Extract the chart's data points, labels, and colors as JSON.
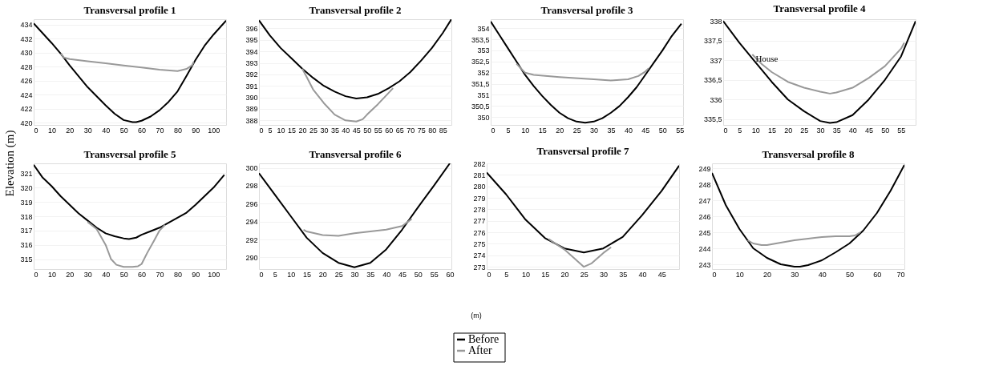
{
  "chart_data": [
    {
      "type": "line",
      "title": "Transversal profile 1",
      "ylabel": "Elevation (m)",
      "legend": "bottom",
      "grid": "y",
      "xlim": [
        0,
        107
      ],
      "ylim": [
        419.7,
        434.8
      ],
      "xticks": [
        0,
        10,
        20,
        30,
        40,
        50,
        60,
        70,
        80,
        90,
        100
      ],
      "yticks": [
        420,
        422,
        424,
        426,
        428,
        430,
        432,
        434
      ],
      "series": [
        {
          "name": "Before",
          "color": "#000000",
          "x": [
            0,
            10,
            15,
            20,
            30,
            40,
            45,
            50,
            55,
            57,
            60,
            65,
            70,
            75,
            80,
            85,
            90,
            95,
            100,
            107
          ],
          "values": [
            434.2,
            431.4,
            429.9,
            428.2,
            425.1,
            422.5,
            421.3,
            420.4,
            420.1,
            420.1,
            420.3,
            420.9,
            421.8,
            423.0,
            424.5,
            426.7,
            429.0,
            431.0,
            432.6,
            434.6
          ]
        },
        {
          "name": "After",
          "color": "#999999",
          "x": [
            15,
            17,
            20,
            30,
            40,
            50,
            60,
            70,
            80,
            85,
            88,
            89
          ],
          "values": [
            429.9,
            429.3,
            429.1,
            428.8,
            428.5,
            428.2,
            427.9,
            427.6,
            427.4,
            427.7,
            428.2,
            428.7
          ]
        }
      ]
    },
    {
      "type": "line",
      "title": "Transversal profile 2",
      "grid": "y",
      "xlim": [
        0,
        89
      ],
      "ylim": [
        387.6,
        396.8
      ],
      "xticks": [
        0,
        5,
        10,
        15,
        20,
        25,
        30,
        35,
        40,
        45,
        50,
        55,
        60,
        65,
        70,
        75,
        80,
        85
      ],
      "yticks": [
        388,
        389,
        390,
        391,
        392,
        393,
        394,
        395,
        396
      ],
      "series": [
        {
          "color": "#000000",
          "x": [
            0,
            5,
            10,
            15,
            20,
            25,
            30,
            35,
            40,
            45,
            50,
            55,
            60,
            65,
            70,
            75,
            80,
            85,
            89
          ],
          "values": [
            396.7,
            395.4,
            394.3,
            393.4,
            392.5,
            391.7,
            391.0,
            390.5,
            390.1,
            389.9,
            390.0,
            390.3,
            390.8,
            391.4,
            392.2,
            393.2,
            394.3,
            395.6,
            396.8
          ]
        },
        {
          "color": "#999999",
          "x": [
            20,
            22,
            25,
            30,
            35,
            40,
            45,
            48,
            50,
            55,
            60,
            62
          ],
          "values": [
            392.5,
            391.8,
            390.7,
            389.5,
            388.5,
            388.0,
            387.9,
            388.1,
            388.5,
            389.4,
            390.4,
            390.8
          ]
        }
      ]
    },
    {
      "type": "line",
      "title": "Transversal profile 3",
      "grid": "y",
      "xlim": [
        0,
        56
      ],
      "ylim": [
        349.65,
        354.4
      ],
      "xticks": [
        0,
        5,
        10,
        15,
        20,
        25,
        30,
        35,
        40,
        45,
        50,
        55
      ],
      "yticks": [
        350,
        {
          "value": 350.5,
          "label": "350,5"
        },
        351,
        {
          "value": 351.5,
          "label": "351,5"
        },
        352,
        {
          "value": 352.5,
          "label": "352,5"
        },
        353,
        {
          "value": 353.5,
          "label": "353,5"
        },
        354
      ],
      "series": [
        {
          "color": "#000000",
          "x": [
            0,
            2.5,
            5,
            7.5,
            10,
            12.5,
            15,
            17.5,
            20,
            22.5,
            25,
            27.5,
            30,
            32.5,
            35,
            37.5,
            40,
            42.5,
            45,
            47.5,
            50,
            52.5,
            55.5
          ],
          "values": [
            354.3,
            353.7,
            353.1,
            352.5,
            351.9,
            351.4,
            350.95,
            350.55,
            350.2,
            349.95,
            349.8,
            349.75,
            349.8,
            349.95,
            350.2,
            350.5,
            350.9,
            351.35,
            351.9,
            352.45,
            353.0,
            353.6,
            354.2
          ]
        },
        {
          "color": "#999999",
          "x": [
            7.5,
            10,
            12.5,
            20,
            30,
            35,
            40,
            43,
            45,
            46
          ],
          "values": [
            352.4,
            352.0,
            351.9,
            351.8,
            351.7,
            351.65,
            351.7,
            351.85,
            352.05,
            352.2
          ]
        }
      ]
    },
    {
      "type": "line",
      "title": "Transversal profile 4",
      "grid": "y",
      "xlim": [
        0,
        59.5
      ],
      "ylim": [
        335.35,
        338.05
      ],
      "xticks": [
        0,
        5,
        10,
        15,
        20,
        25,
        30,
        35,
        40,
        45,
        50,
        55
      ],
      "yticks": [
        {
          "value": 335.5,
          "label": "335,5"
        },
        336,
        {
          "value": 336.5,
          "label": "336,5"
        },
        337,
        {
          "value": 337.5,
          "label": "337,5"
        },
        338
      ],
      "annotations": [
        {
          "text": "House",
          "x": 13,
          "y": 336.75
        }
      ],
      "series": [
        {
          "color": "#000000",
          "x": [
            0,
            5,
            10,
            15,
            20,
            25,
            30,
            33,
            35,
            40,
            45,
            50,
            55,
            59.5
          ],
          "values": [
            338.0,
            337.45,
            336.95,
            336.45,
            336.0,
            335.7,
            335.45,
            335.4,
            335.42,
            335.6,
            336.0,
            336.5,
            337.1,
            338.0
          ]
        },
        {
          "color": "#999999",
          "x": [
            9,
            12,
            15,
            20,
            25,
            30,
            33,
            35,
            40,
            45,
            50,
            55,
            56
          ],
          "values": [
            337.15,
            336.9,
            336.7,
            336.45,
            336.3,
            336.2,
            336.15,
            336.18,
            336.3,
            336.55,
            336.85,
            337.3,
            337.45
          ]
        }
      ]
    },
    {
      "type": "line",
      "title": "Transversal profile 5",
      "grid": "y",
      "xlim": [
        0,
        107
      ],
      "ylim": [
        314.3,
        321.7
      ],
      "xticks": [
        0,
        10,
        20,
        30,
        40,
        50,
        60,
        70,
        80,
        90,
        100
      ],
      "yticks": [
        315,
        316,
        317,
        318,
        319,
        320,
        321
      ],
      "series": [
        {
          "color": "#000000",
          "x": [
            0,
            5,
            10,
            15,
            20,
            25,
            30,
            35,
            40,
            45,
            50,
            53,
            57,
            60,
            65,
            70,
            75,
            80,
            85,
            90,
            95,
            100,
            106
          ],
          "values": [
            321.6,
            320.7,
            320.1,
            319.4,
            318.8,
            318.2,
            317.7,
            317.2,
            316.8,
            316.6,
            316.45,
            316.4,
            316.5,
            316.7,
            316.95,
            317.2,
            317.55,
            317.9,
            318.25,
            318.8,
            319.4,
            320.0,
            320.9
          ]
        },
        {
          "color": "#999999",
          "x": [
            30,
            35,
            40,
            43,
            46,
            50,
            55,
            58,
            60,
            63,
            67,
            70,
            73
          ],
          "values": [
            317.6,
            317.1,
            316.0,
            315.0,
            314.6,
            314.45,
            314.45,
            314.5,
            314.65,
            315.4,
            316.3,
            317.0,
            317.4
          ]
        }
      ]
    },
    {
      "type": "line",
      "title": "Transversal profile 6",
      "grid": "y",
      "xlim": [
        0,
        60.5
      ],
      "ylim": [
        288.7,
        300.5
      ],
      "xticks": [
        0,
        5,
        10,
        15,
        20,
        25,
        30,
        35,
        40,
        45,
        50,
        55,
        60
      ],
      "yticks": [
        290,
        292,
        294,
        296,
        298,
        300
      ],
      "series": [
        {
          "color": "#000000",
          "x": [
            0,
            5,
            10,
            15,
            20,
            25,
            30,
            35,
            40,
            45,
            50,
            55,
            60
          ],
          "values": [
            299.4,
            297.0,
            294.6,
            292.2,
            290.5,
            289.4,
            288.9,
            289.4,
            290.9,
            293.1,
            295.6,
            298.0,
            300.5
          ]
        },
        {
          "color": "#999999",
          "x": [
            14,
            15,
            20,
            25,
            30,
            35,
            40,
            45,
            48
          ],
          "values": [
            293.1,
            292.9,
            292.5,
            292.4,
            292.7,
            292.9,
            293.1,
            293.5,
            294.3
          ]
        }
      ]
    },
    {
      "type": "line",
      "title": "Transversal profile 7",
      "annotations": [
        "(m)"
      ],
      "grid": "y",
      "xlim": [
        0,
        49.5
      ],
      "ylim": [
        272.8,
        282
      ],
      "xticks": [
        0,
        5,
        10,
        15,
        20,
        25,
        30,
        35,
        40,
        45
      ],
      "yticks": [
        273,
        274,
        275,
        276,
        277,
        278,
        279,
        280,
        281,
        282
      ],
      "series": [
        {
          "color": "#000000",
          "x": [
            0,
            5,
            10,
            15,
            20,
            25,
            30,
            35,
            40,
            45,
            49.5
          ],
          "values": [
            281.2,
            279.3,
            277.1,
            275.5,
            274.6,
            274.25,
            274.6,
            275.6,
            277.5,
            279.6,
            281.8
          ]
        },
        {
          "color": "#999999",
          "x": [
            16,
            20,
            25,
            27,
            30,
            32
          ],
          "values": [
            275.4,
            274.5,
            273.0,
            273.3,
            274.2,
            274.7
          ]
        }
      ]
    },
    {
      "type": "line",
      "title": "Transversal profile 8",
      "grid": "y",
      "xlim": [
        0,
        70
      ],
      "ylim": [
        242.7,
        249.3
      ],
      "xticks": [
        0,
        10,
        20,
        30,
        40,
        50,
        60,
        70
      ],
      "yticks": [
        243,
        244,
        245,
        246,
        247,
        248,
        249
      ],
      "series": [
        {
          "color": "#000000",
          "x": [
            0,
            5,
            10,
            15,
            20,
            25,
            30,
            32,
            35,
            40,
            45,
            50,
            55,
            60,
            65,
            70
          ],
          "values": [
            248.7,
            246.7,
            245.2,
            244.0,
            243.4,
            243.0,
            242.85,
            242.85,
            242.95,
            243.25,
            243.75,
            244.3,
            245.1,
            246.2,
            247.6,
            249.2
          ]
        },
        {
          "color": "#999999",
          "x": [
            13,
            15,
            18,
            20,
            25,
            30,
            35,
            40,
            45,
            50,
            52,
            54
          ],
          "values": [
            244.5,
            244.3,
            244.2,
            244.2,
            244.35,
            244.5,
            244.6,
            244.7,
            244.75,
            244.75,
            244.8,
            245.0
          ]
        }
      ]
    }
  ]
}
